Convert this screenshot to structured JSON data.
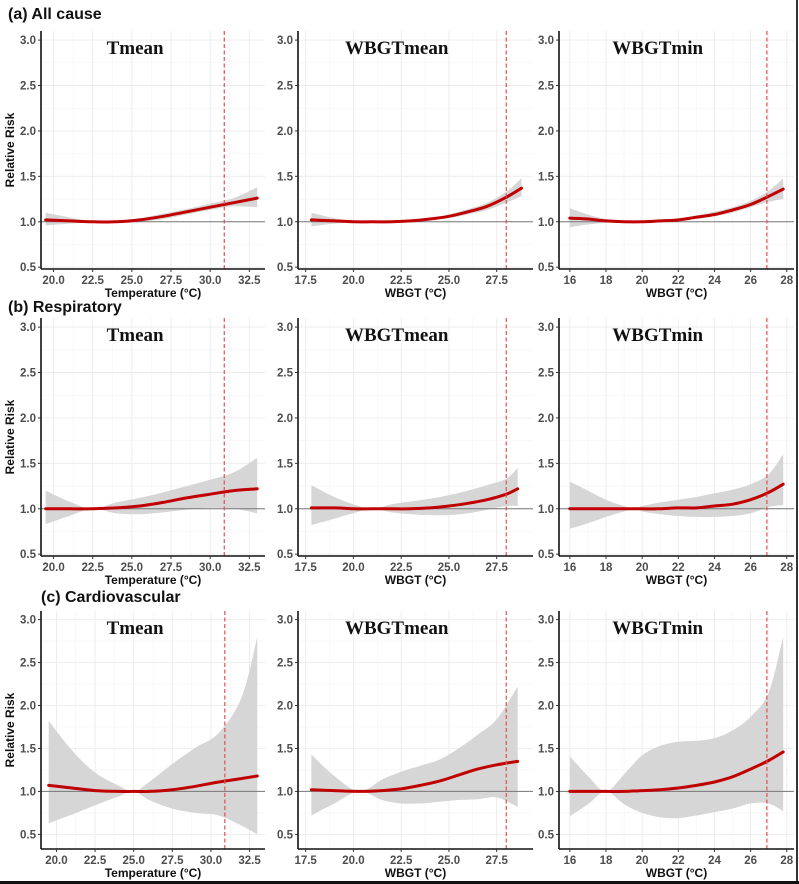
{
  "figure": {
    "rows": [
      {
        "label": "(a) All cause"
      },
      {
        "label": "(b) Respiratory"
      },
      {
        "label": "(c) Cardiovascular"
      }
    ],
    "ylabel": "Relative Risk"
  },
  "chart_data": [
    {
      "type": "line",
      "row": "(a) All cause",
      "title": "Tmean",
      "xlabel": "Temperature (°C)",
      "ylabel": "Relative Risk",
      "xlim": [
        19.2,
        33.5
      ],
      "ylim": [
        0.48,
        3.1
      ],
      "xticks": [
        "20.0",
        "22.5",
        "25.0",
        "27.5",
        "30.0",
        "32.5"
      ],
      "xtick_values": [
        20,
        22.5,
        25,
        27.5,
        30,
        32.5
      ],
      "yticks": [
        "0.5",
        "1.0",
        "1.5",
        "2.0",
        "2.5",
        "3.0"
      ],
      "ytick_values": [
        0.5,
        1.0,
        1.5,
        2.0,
        2.5,
        3.0
      ],
      "reference_line": 1.0,
      "threshold": 30.9,
      "x": [
        19.5,
        21,
        22.5,
        24,
        25.5,
        27,
        28.5,
        30,
        31.5,
        33
      ],
      "rr": [
        1.02,
        1.01,
        1.0,
        1.0,
        1.02,
        1.06,
        1.11,
        1.16,
        1.21,
        1.26
      ],
      "lower": [
        0.96,
        0.98,
        0.995,
        0.995,
        1.0,
        1.03,
        1.08,
        1.13,
        1.17,
        1.16
      ],
      "upper": [
        1.1,
        1.05,
        1.005,
        1.01,
        1.04,
        1.09,
        1.14,
        1.2,
        1.26,
        1.38
      ]
    },
    {
      "type": "line",
      "row": "(a) All cause",
      "title": "WBGTmean",
      "xlabel": "WBGT (°C)",
      "ylabel": "",
      "xlim": [
        17.1,
        29.4
      ],
      "ylim": [
        0.48,
        3.1
      ],
      "xticks": [
        "17.5",
        "20.0",
        "22.5",
        "25.0",
        "27.5"
      ],
      "xtick_values": [
        17.5,
        20,
        22.5,
        25,
        27.5
      ],
      "yticks": [
        "0.5",
        "1.0",
        "1.5",
        "2.0",
        "2.5",
        "3.0"
      ],
      "ytick_values": [
        0.5,
        1.0,
        1.5,
        2.0,
        2.5,
        3.0
      ],
      "reference_line": 1.0,
      "threshold": 28.0,
      "x": [
        17.8,
        19,
        20,
        21,
        22,
        23,
        24,
        25,
        26,
        27,
        28,
        28.8
      ],
      "rr": [
        1.02,
        1.01,
        1.0,
        1.0,
        1.0,
        1.01,
        1.03,
        1.06,
        1.11,
        1.17,
        1.27,
        1.37
      ],
      "lower": [
        0.95,
        0.98,
        0.99,
        0.995,
        0.995,
        1.0,
        1.02,
        1.04,
        1.08,
        1.13,
        1.21,
        1.28
      ],
      "upper": [
        1.1,
        1.04,
        1.01,
        1.005,
        1.01,
        1.02,
        1.04,
        1.08,
        1.14,
        1.21,
        1.33,
        1.48
      ]
    },
    {
      "type": "line",
      "row": "(a) All cause",
      "title": "WBGTmin",
      "xlabel": "WBGT (°C)",
      "ylabel": "",
      "xlim": [
        15.4,
        28.4
      ],
      "ylim": [
        0.48,
        3.1
      ],
      "xticks": [
        "16",
        "18",
        "20",
        "22",
        "24",
        "26",
        "28"
      ],
      "xtick_values": [
        16,
        18,
        20,
        22,
        24,
        26,
        28
      ],
      "yticks": [
        "0.5",
        "1.0",
        "1.5",
        "2.0",
        "2.5",
        "3.0"
      ],
      "ytick_values": [
        0.5,
        1.0,
        1.5,
        2.0,
        2.5,
        3.0
      ],
      "reference_line": 1.0,
      "threshold": 26.9,
      "x": [
        16,
        17,
        18,
        19,
        20,
        21,
        22,
        23,
        24,
        25,
        26,
        27,
        27.8
      ],
      "rr": [
        1.04,
        1.03,
        1.01,
        1.0,
        1.0,
        1.01,
        1.02,
        1.05,
        1.08,
        1.13,
        1.19,
        1.28,
        1.36
      ],
      "lower": [
        0.94,
        0.97,
        0.99,
        0.995,
        0.995,
        1.0,
        1.01,
        1.03,
        1.06,
        1.1,
        1.16,
        1.22,
        1.25
      ],
      "upper": [
        1.15,
        1.08,
        1.03,
        1.01,
        1.005,
        1.015,
        1.03,
        1.07,
        1.11,
        1.16,
        1.23,
        1.34,
        1.48
      ]
    },
    {
      "type": "line",
      "row": "(b) Respiratory",
      "title": "Tmean",
      "xlabel": "Temperature (°C)",
      "ylabel": "Relative Risk",
      "xlim": [
        19.2,
        33.5
      ],
      "ylim": [
        0.48,
        3.1
      ],
      "xticks": [
        "20.0",
        "22.5",
        "25.0",
        "27.5",
        "30.0",
        "32.5"
      ],
      "xtick_values": [
        20,
        22.5,
        25,
        27.5,
        30,
        32.5
      ],
      "yticks": [
        "0.5",
        "1.0",
        "1.5",
        "2.0",
        "2.5",
        "3.0"
      ],
      "ytick_values": [
        0.5,
        1.0,
        1.5,
        2.0,
        2.5,
        3.0
      ],
      "reference_line": 1.0,
      "threshold": 30.9,
      "x": [
        19.5,
        21,
        22.5,
        24,
        25.5,
        27,
        28.5,
        30,
        31.5,
        33
      ],
      "rr": [
        1.0,
        1.0,
        1.0,
        1.01,
        1.03,
        1.07,
        1.12,
        1.16,
        1.2,
        1.22
      ],
      "lower": [
        0.83,
        0.92,
        1.0,
        0.95,
        0.94,
        0.96,
        0.99,
        1.01,
        1.0,
        0.95
      ],
      "upper": [
        1.2,
        1.08,
        1.0,
        1.07,
        1.12,
        1.18,
        1.25,
        1.32,
        1.4,
        1.56
      ]
    },
    {
      "type": "line",
      "row": "(b) Respiratory",
      "title": "WBGTmean",
      "xlabel": "WBGT (°C)",
      "ylabel": "",
      "xlim": [
        17.1,
        29.4
      ],
      "ylim": [
        0.48,
        3.1
      ],
      "xticks": [
        "17.5",
        "20.0",
        "22.5",
        "25.0",
        "27.5"
      ],
      "xtick_values": [
        17.5,
        20,
        22.5,
        25,
        27.5
      ],
      "yticks": [
        "0.5",
        "1.0",
        "1.5",
        "2.0",
        "2.5",
        "3.0"
      ],
      "ytick_values": [
        0.5,
        1.0,
        1.5,
        2.0,
        2.5,
        3.0
      ],
      "reference_line": 1.0,
      "threshold": 28.0,
      "x": [
        17.8,
        19,
        20,
        21,
        22,
        23,
        24,
        25,
        26,
        27,
        28,
        28.6
      ],
      "rr": [
        1.01,
        1.01,
        1.0,
        1.0,
        1.0,
        1.0,
        1.01,
        1.03,
        1.06,
        1.1,
        1.16,
        1.22
      ],
      "lower": [
        0.82,
        0.89,
        0.95,
        1.0,
        0.96,
        0.94,
        0.93,
        0.93,
        0.95,
        0.99,
        1.03,
        1.03
      ],
      "upper": [
        1.26,
        1.13,
        1.05,
        1.0,
        1.05,
        1.08,
        1.11,
        1.15,
        1.2,
        1.26,
        1.33,
        1.45
      ]
    },
    {
      "type": "line",
      "row": "(b) Respiratory",
      "title": "WBGTmin",
      "xlabel": "WBGT (°C)",
      "ylabel": "",
      "xlim": [
        15.4,
        28.4
      ],
      "ylim": [
        0.48,
        3.1
      ],
      "xticks": [
        "16",
        "18",
        "20",
        "22",
        "24",
        "26",
        "28"
      ],
      "xtick_values": [
        16,
        18,
        20,
        22,
        24,
        26,
        28
      ],
      "yticks": [
        "0.5",
        "1.0",
        "1.5",
        "2.0",
        "2.5",
        "3.0"
      ],
      "ytick_values": [
        0.5,
        1.0,
        1.5,
        2.0,
        2.5,
        3.0
      ],
      "reference_line": 1.0,
      "threshold": 26.9,
      "x": [
        16,
        17,
        18,
        19,
        19.6,
        20,
        21,
        22,
        23,
        24,
        25,
        26,
        27,
        27.8
      ],
      "rr": [
        1.0,
        1.0,
        1.0,
        1.0,
        1.0,
        1.0,
        1.0,
        1.01,
        1.01,
        1.03,
        1.05,
        1.1,
        1.18,
        1.27
      ],
      "lower": [
        0.78,
        0.84,
        0.91,
        0.97,
        1.0,
        0.97,
        0.94,
        0.92,
        0.91,
        0.91,
        0.92,
        0.95,
        1.02,
        1.04
      ],
      "upper": [
        1.3,
        1.2,
        1.1,
        1.03,
        1.0,
        1.03,
        1.07,
        1.1,
        1.13,
        1.17,
        1.21,
        1.27,
        1.38,
        1.6
      ]
    },
    {
      "type": "line",
      "row": "(c) Cardiovascular",
      "title": "Tmean",
      "xlabel": "Temperature (°C)",
      "ylabel": "Relative Risk",
      "xlim": [
        19.0,
        33.5
      ],
      "ylim": [
        0.33,
        3.1
      ],
      "xticks": [
        "20.0",
        "22.5",
        "25.0",
        "27.5",
        "30.0",
        "32.5"
      ],
      "xtick_values": [
        20,
        22.5,
        25,
        27.5,
        30,
        32.5
      ],
      "yticks": [
        "0.5",
        "1.0",
        "1.5",
        "2.0",
        "2.5",
        "3.0"
      ],
      "ytick_values": [
        0.5,
        1.0,
        1.5,
        2.0,
        2.5,
        3.0
      ],
      "reference_line": 1.0,
      "threshold": 30.9,
      "x": [
        19.5,
        21,
        22.5,
        24,
        25,
        26,
        27.5,
        29,
        30.5,
        32,
        33
      ],
      "rr": [
        1.07,
        1.04,
        1.01,
        1.0,
        1.0,
        1.0,
        1.02,
        1.06,
        1.11,
        1.15,
        1.18
      ],
      "lower": [
        0.63,
        0.73,
        0.84,
        0.94,
        1.0,
        0.9,
        0.8,
        0.75,
        0.72,
        0.6,
        0.5
      ],
      "upper": [
        1.82,
        1.48,
        1.22,
        1.07,
        1.0,
        1.11,
        1.32,
        1.51,
        1.68,
        2.1,
        2.8
      ]
    },
    {
      "type": "line",
      "row": "(c) Cardiovascular",
      "title": "WBGTmean",
      "xlabel": "WBGT (°C)",
      "ylabel": "",
      "xlim": [
        17.1,
        29.4
      ],
      "ylim": [
        0.33,
        3.1
      ],
      "xticks": [
        "17.5",
        "20.0",
        "22.5",
        "25.0",
        "27.5"
      ],
      "xtick_values": [
        17.5,
        20,
        22.5,
        25,
        27.5
      ],
      "yticks": [
        "0.5",
        "1.0",
        "1.5",
        "2.0",
        "2.5",
        "3.0"
      ],
      "ytick_values": [
        0.5,
        1.0,
        1.5,
        2.0,
        2.5,
        3.0
      ],
      "reference_line": 1.0,
      "threshold": 28.0,
      "x": [
        17.8,
        19,
        20.3,
        21.5,
        22.5,
        23.5,
        24.5,
        25.5,
        26.5,
        27.5,
        28.6
      ],
      "rr": [
        1.02,
        1.01,
        1.0,
        1.01,
        1.03,
        1.07,
        1.12,
        1.19,
        1.26,
        1.31,
        1.35
      ],
      "lower": [
        0.72,
        0.86,
        1.0,
        0.9,
        0.86,
        0.86,
        0.88,
        0.9,
        0.91,
        0.93,
        0.82
      ],
      "upper": [
        1.43,
        1.18,
        1.0,
        1.14,
        1.23,
        1.3,
        1.37,
        1.5,
        1.66,
        1.84,
        2.22
      ]
    },
    {
      "type": "line",
      "row": "(c) Cardiovascular",
      "title": "WBGTmin",
      "xlabel": "WBGT (°C)",
      "ylabel": "",
      "xlim": [
        15.4,
        28.4
      ],
      "ylim": [
        0.33,
        3.1
      ],
      "xticks": [
        "16",
        "18",
        "20",
        "22",
        "24",
        "26",
        "28"
      ],
      "xtick_values": [
        16,
        18,
        20,
        22,
        24,
        26,
        28
      ],
      "yticks": [
        "0.5",
        "1.0",
        "1.5",
        "2.0",
        "2.5",
        "3.0"
      ],
      "ytick_values": [
        0.5,
        1.0,
        1.5,
        2.0,
        2.5,
        3.0
      ],
      "reference_line": 1.0,
      "threshold": 26.9,
      "x": [
        16,
        17,
        18,
        19,
        20,
        21,
        22,
        23,
        24,
        25,
        26,
        27,
        27.8
      ],
      "rr": [
        1.0,
        1.0,
        1.0,
        1.0,
        1.01,
        1.02,
        1.04,
        1.07,
        1.11,
        1.17,
        1.26,
        1.36,
        1.46
      ],
      "lower": [
        0.71,
        0.85,
        1.0,
        0.85,
        0.75,
        0.7,
        0.69,
        0.72,
        0.76,
        0.8,
        0.86,
        0.86,
        0.77
      ],
      "upper": [
        1.41,
        1.18,
        1.0,
        1.2,
        1.42,
        1.53,
        1.58,
        1.59,
        1.62,
        1.71,
        1.87,
        2.15,
        2.8
      ]
    }
  ]
}
